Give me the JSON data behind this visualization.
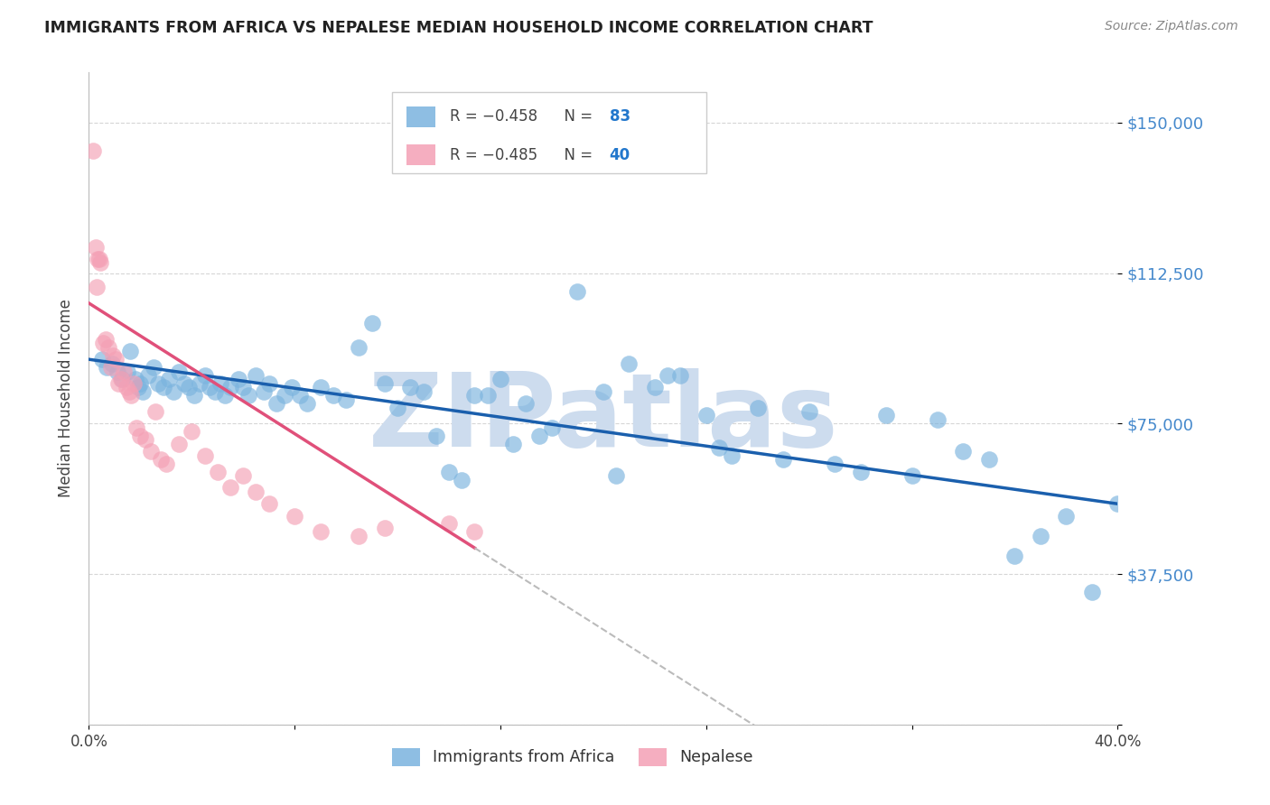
{
  "title": "IMMIGRANTS FROM AFRICA VS NEPALESE MEDIAN HOUSEHOLD INCOME CORRELATION CHART",
  "source": "Source: ZipAtlas.com",
  "ylabel": "Median Household Income",
  "xlim": [
    0.0,
    40.0
  ],
  "ylim": [
    0,
    162500
  ],
  "yticks": [
    0,
    37500,
    75000,
    112500,
    150000
  ],
  "ytick_labels": [
    "",
    "$37,500",
    "$75,000",
    "$112,500",
    "$150,000"
  ],
  "xticks": [
    0.0,
    8.0,
    16.0,
    24.0,
    32.0,
    40.0
  ],
  "xtick_labels": [
    "0.0%",
    "",
    "",
    "",
    "",
    "40.0%"
  ],
  "africa_R": -0.458,
  "africa_N": 83,
  "nepal_R": -0.485,
  "nepal_N": 40,
  "africa_color": "#7ab3de",
  "nepal_color": "#f4a0b5",
  "africa_line_color": "#1a5fad",
  "nepal_line_color": "#e0507a",
  "watermark": "ZIPatlas",
  "watermark_color": "#cddcee",
  "background_color": "#ffffff",
  "grid_color": "#cccccc",
  "title_color": "#222222",
  "ylabel_color": "#444444",
  "yticklabel_color": "#4488cc",
  "source_color": "#888888",
  "africa_scatter_x": [
    0.5,
    0.7,
    0.9,
    1.1,
    1.3,
    1.5,
    1.6,
    1.8,
    1.9,
    2.0,
    2.1,
    2.3,
    2.5,
    2.7,
    2.9,
    3.1,
    3.3,
    3.5,
    3.7,
    3.9,
    4.1,
    4.3,
    4.5,
    4.7,
    4.9,
    5.1,
    5.3,
    5.5,
    5.8,
    6.0,
    6.2,
    6.5,
    6.8,
    7.0,
    7.3,
    7.6,
    7.9,
    8.2,
    8.5,
    9.0,
    9.5,
    10.0,
    10.5,
    11.0,
    11.5,
    12.0,
    12.5,
    13.0,
    14.0,
    14.5,
    15.0,
    16.0,
    17.0,
    18.0,
    19.0,
    20.0,
    21.0,
    22.0,
    23.0,
    24.0,
    25.0,
    26.0,
    27.0,
    28.0,
    29.0,
    30.0,
    31.0,
    32.0,
    33.0,
    34.0,
    35.0,
    36.0,
    37.0,
    38.0,
    39.0,
    40.0,
    15.5,
    16.5,
    22.5,
    24.5,
    20.5,
    17.5,
    13.5
  ],
  "africa_scatter_y": [
    91000,
    89000,
    90000,
    88000,
    86000,
    88000,
    93000,
    86000,
    84000,
    85000,
    83000,
    87000,
    89000,
    85000,
    84000,
    86000,
    83000,
    88000,
    85000,
    84000,
    82000,
    85000,
    87000,
    84000,
    83000,
    85000,
    82000,
    84000,
    86000,
    84000,
    82000,
    87000,
    83000,
    85000,
    80000,
    82000,
    84000,
    82000,
    80000,
    84000,
    82000,
    81000,
    94000,
    100000,
    85000,
    79000,
    84000,
    83000,
    63000,
    61000,
    82000,
    86000,
    80000,
    74000,
    108000,
    83000,
    90000,
    84000,
    87000,
    77000,
    67000,
    79000,
    66000,
    78000,
    65000,
    63000,
    77000,
    62000,
    76000,
    68000,
    66000,
    42000,
    47000,
    52000,
    33000,
    55000,
    82000,
    70000,
    87000,
    69000,
    62000,
    72000,
    72000
  ],
  "nepal_scatter_x": [
    0.15,
    0.25,
    0.35,
    0.45,
    0.55,
    0.65,
    0.75,
    0.85,
    0.95,
    1.05,
    1.15,
    1.25,
    1.35,
    1.45,
    1.55,
    1.65,
    1.75,
    1.85,
    2.0,
    2.2,
    2.4,
    2.6,
    2.8,
    3.0,
    3.5,
    4.0,
    4.5,
    5.0,
    5.5,
    6.0,
    6.5,
    7.0,
    8.0,
    9.0,
    10.5,
    11.5,
    14.0,
    15.0,
    0.3,
    0.4
  ],
  "nepal_scatter_y": [
    143000,
    119000,
    116000,
    115000,
    95000,
    96000,
    94000,
    89000,
    92000,
    91000,
    85000,
    86000,
    88000,
    84000,
    83000,
    82000,
    85000,
    74000,
    72000,
    71000,
    68000,
    78000,
    66000,
    65000,
    70000,
    73000,
    67000,
    63000,
    59000,
    62000,
    58000,
    55000,
    52000,
    48000,
    47000,
    49000,
    50000,
    48000,
    109000,
    116000
  ],
  "africa_line_x0": 0.0,
  "africa_line_y0": 91000,
  "africa_line_x1": 40.0,
  "africa_line_y1": 55000,
  "nepal_line_x0": 0.0,
  "nepal_line_y0": 105000,
  "nepal_line_x1": 15.0,
  "nepal_line_y1": 44000,
  "nepal_dash_x0": 15.0,
  "nepal_dash_x1": 40.0
}
